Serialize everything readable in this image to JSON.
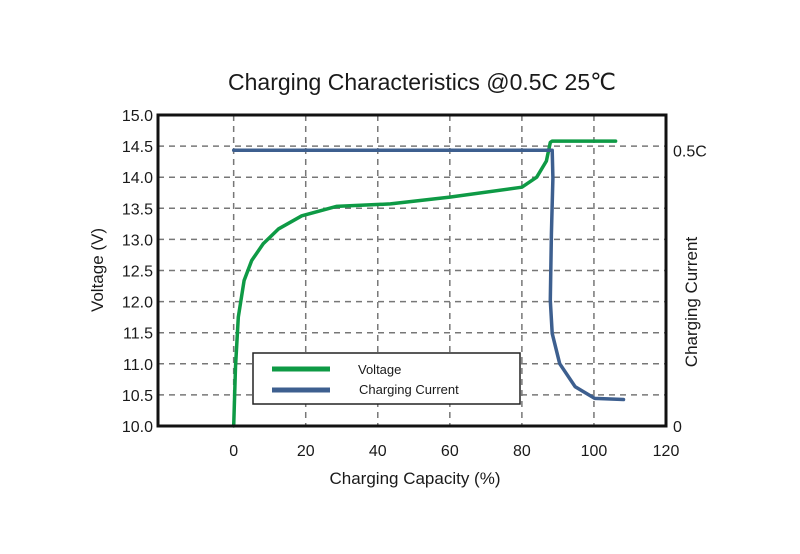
{
  "chart_data": {
    "type": "line",
    "title": "Charging Characteristics @0.5C 25℃",
    "xlabel": "Charging Capacity (%)",
    "ylabel": "Voltage (V)",
    "y2label": "Charging Current",
    "xlim": [
      -21,
      120
    ],
    "ylim": [
      10.0,
      15.0
    ],
    "y2lim": [
      0,
      0.564
    ],
    "x_ticks": [
      0,
      20,
      40,
      60,
      80,
      100,
      120
    ],
    "x_tick_labels": [
      "0",
      "20",
      "40",
      "60",
      "80",
      "100",
      "120"
    ],
    "y_ticks": [
      10.0,
      10.5,
      11.0,
      11.5,
      12.0,
      12.5,
      13.0,
      13.5,
      14.0,
      14.5,
      15.0
    ],
    "y_tick_labels": [
      "10.0",
      "10.5",
      "11.0",
      "11.5",
      "12.0",
      "12.5",
      "13.0",
      "13.5",
      "14.0",
      "14.5",
      "15.0"
    ],
    "y2_ticks": [
      0,
      0.5
    ],
    "y2_tick_labels": [
      "0",
      "0.5C"
    ],
    "grid": true,
    "legend_position": "bottom-left",
    "series": [
      {
        "name": "Voltage",
        "axis": "left",
        "color": "#0e9a45",
        "x": [
          0,
          0.5,
          1.3,
          2.9,
          5.0,
          8.2,
          12.5,
          18.9,
          28.5,
          43.5,
          60,
          80,
          84.1,
          86.8,
          87.9,
          88.4,
          106
        ],
        "y": [
          10.0,
          10.95,
          11.75,
          12.34,
          12.66,
          12.93,
          13.17,
          13.38,
          13.53,
          13.57,
          13.68,
          13.84,
          14.0,
          14.26,
          14.56,
          14.58,
          14.58
        ]
      },
      {
        "name": "Charging Current",
        "axis": "right",
        "color": "#3d5f8f",
        "x": [
          0,
          88.4,
          88.6,
          88.2,
          87.9,
          88.4,
          90.5,
          94.8,
          100.2,
          108.2
        ],
        "y": [
          0.5,
          0.5,
          0.45,
          0.348,
          0.228,
          0.168,
          0.113,
          0.071,
          0.05,
          0.048
        ]
      }
    ]
  }
}
